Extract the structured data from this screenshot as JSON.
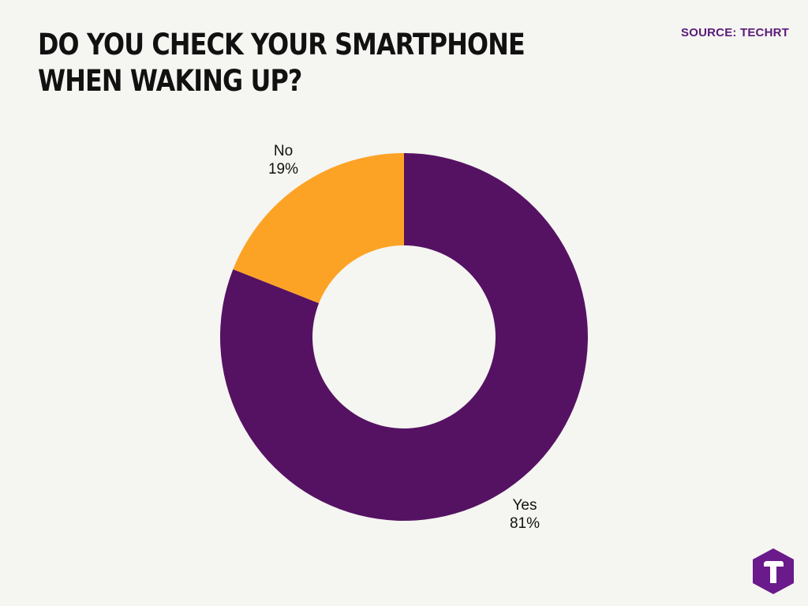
{
  "header": {
    "title": "DO YOU CHECK YOUR SMARTPHONE WHEN WAKING UP?",
    "source": "SOURCE: TECHRT"
  },
  "chart_data": {
    "type": "pie",
    "variant": "donut",
    "title": "DO YOU CHECK YOUR SMARTPHONE WHEN WAKING UP?",
    "slices": [
      {
        "name": "Yes",
        "value": 81,
        "label": "81%",
        "color": "#551263"
      },
      {
        "name": "No",
        "value": 19,
        "label": "19%",
        "color": "#fca326"
      }
    ],
    "legend": "none",
    "data_labels": "outside"
  },
  "logo": {
    "icon": "techrt-logo-icon",
    "color": "#6a1a8a"
  }
}
